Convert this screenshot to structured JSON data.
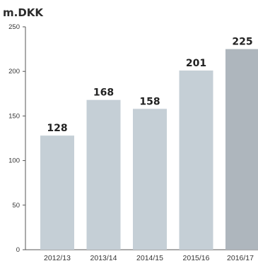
{
  "chart_data": {
    "type": "bar",
    "unit_label": "m.DKK",
    "categories": [
      "2012/13",
      "2013/14",
      "2014/15",
      "2015/16",
      "2016/17"
    ],
    "values": [
      128,
      168,
      158,
      201,
      225
    ],
    "data_labels": [
      "128",
      "168",
      "158",
      "201",
      "225"
    ],
    "ylim": [
      0,
      250
    ],
    "yticks": [
      0,
      50,
      100,
      150,
      200,
      250
    ],
    "grid": false,
    "colors": {
      "bar": "#c5cfd6",
      "highlight_bar": "#aeb6bd",
      "axis": "#555555"
    },
    "highlight_index": 4
  }
}
